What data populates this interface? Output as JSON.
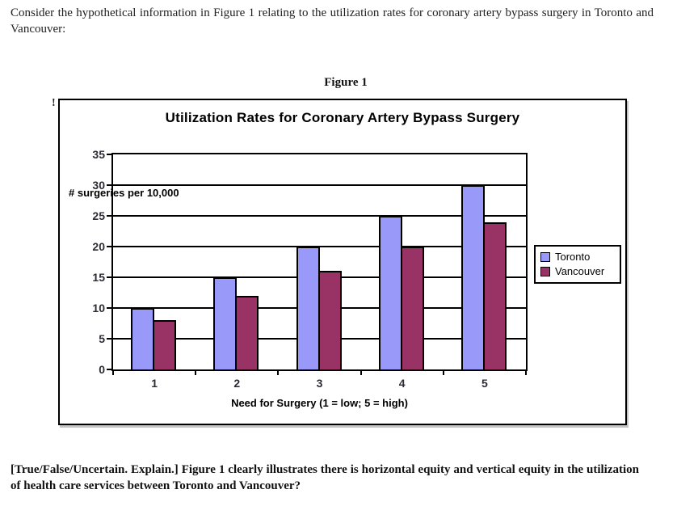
{
  "page": {
    "intro_text": "Consider the hypothetical information in Figure 1 relating to the utilization rates for coronary artery bypass surgery in Toronto and Vancouver:",
    "figure_label": "Figure 1",
    "stray_mark": "!",
    "question_text": "[True/False/Uncertain. Explain.] Figure 1 clearly illustrates there is horizontal equity and vertical equity in the utilization of health care services between Toronto and Vancouver?"
  },
  "chart_data": {
    "type": "bar",
    "title": "Utilization Rates for Coronary Artery Bypass Surgery",
    "categories": [
      "1",
      "2",
      "3",
      "4",
      "5"
    ],
    "series": [
      {
        "name": "Toronto",
        "color": "#9999fa",
        "values": [
          10,
          15,
          20,
          25,
          30
        ]
      },
      {
        "name": "Vancouver",
        "color": "#993366",
        "values": [
          8,
          12,
          16,
          20,
          24
        ]
      }
    ],
    "xlabel": "Need for Surgery (1 = low; 5 = high)",
    "ylabel": "# surgeries per 10,000",
    "ylim": [
      0,
      35
    ],
    "yticks": [
      0,
      5,
      10,
      15,
      20,
      25,
      30,
      35
    ],
    "grid": true,
    "legend_position": "right",
    "bar_border_color": "#000000",
    "axis_color": "#000000",
    "plot_background": "#ffffff"
  }
}
